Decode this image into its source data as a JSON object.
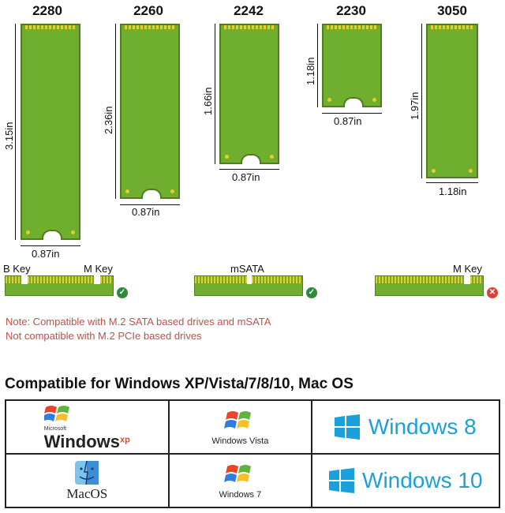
{
  "sizes": [
    {
      "name": "2280",
      "height": "3.15in",
      "width": "0.87in"
    },
    {
      "name": "2260",
      "height": "2.36in",
      "width": "0.87in"
    },
    {
      "name": "2242",
      "height": "1.66in",
      "width": "0.87in"
    },
    {
      "name": "2230",
      "height": "1.18in",
      "width": "0.87in"
    },
    {
      "name": "3050",
      "height": "1.97in",
      "width": "1.18in"
    }
  ],
  "keys": {
    "b_key": "B Key",
    "m_key_left": "M Key",
    "msata": "mSATA",
    "m_key_right": "M Key"
  },
  "badges": {
    "ok": "✓",
    "no": "✕"
  },
  "notes": {
    "line1": "Note: Compatible with M.2 SATA based drives and mSATA",
    "line2": "Not compatible with M.2 PCIe based drives"
  },
  "compat_title": "Compatible for Windows XP/Vista/7/8/10, Mac OS",
  "os": {
    "xp_small": "Microsoft",
    "xp_main": "Windows",
    "xp_sup": "xp",
    "vista": "Windows Vista",
    "win8": "Windows 8",
    "mac": "MacOS",
    "win7": "Windows 7",
    "win10": "Windows 10"
  },
  "colors": {
    "pcb_green": "#6fae2f",
    "gold": "#e6cf2a",
    "note_red": "#c0504d",
    "ok_green": "#2e8b3e",
    "no_red": "#d9443a",
    "metro_blue": "#1aa0db"
  }
}
